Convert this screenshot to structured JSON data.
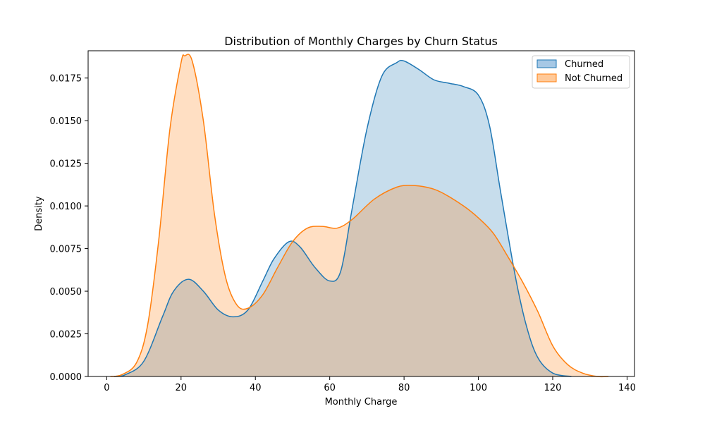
{
  "chart_data": {
    "type": "area",
    "title": "Distribution of Monthly Charges by Churn Status",
    "xlabel": "Monthly Charge",
    "ylabel": "Density",
    "xlim": [
      -5,
      142
    ],
    "ylim": [
      0,
      0.0191
    ],
    "xticks": [
      0,
      20,
      40,
      60,
      80,
      100,
      120,
      140
    ],
    "yticks": [
      0.0,
      0.0025,
      0.005,
      0.0075,
      0.01,
      0.0125,
      0.015,
      0.0175
    ],
    "ytick_labels": [
      "0.0000",
      "0.0025",
      "0.0050",
      "0.0075",
      "0.0100",
      "0.0125",
      "0.0150",
      "0.0175"
    ],
    "grid": false,
    "legend_position": "top-right",
    "series": [
      {
        "name": "Churned",
        "color": "#1f77b4",
        "fill": "#a6c8e5",
        "points": [
          [
            2,
            0.0
          ],
          [
            5,
            0.0001
          ],
          [
            10,
            0.0009
          ],
          [
            15,
            0.0035
          ],
          [
            18,
            0.005
          ],
          [
            22,
            0.0057
          ],
          [
            26,
            0.005
          ],
          [
            30,
            0.0039
          ],
          [
            34,
            0.0035
          ],
          [
            38,
            0.0039
          ],
          [
            42,
            0.0056
          ],
          [
            45,
            0.0069
          ],
          [
            49,
            0.0079
          ],
          [
            52,
            0.0076
          ],
          [
            56,
            0.0064
          ],
          [
            60,
            0.0056
          ],
          [
            63,
            0.0062
          ],
          [
            66,
            0.0098
          ],
          [
            70,
            0.0145
          ],
          [
            74,
            0.0176
          ],
          [
            78,
            0.0184
          ],
          [
            80,
            0.0185
          ],
          [
            84,
            0.018
          ],
          [
            88,
            0.0174
          ],
          [
            92,
            0.0172
          ],
          [
            96,
            0.017
          ],
          [
            100,
            0.0165
          ],
          [
            103,
            0.0147
          ],
          [
            106,
            0.0108
          ],
          [
            110,
            0.0058
          ],
          [
            113,
            0.0029
          ],
          [
            116,
            0.0011
          ],
          [
            120,
            0.0002
          ],
          [
            125,
            0.0
          ]
        ]
      },
      {
        "name": "Not Churned",
        "color": "#ff7f0e",
        "fill": "#ffc999",
        "points": [
          [
            1,
            0.0
          ],
          [
            4,
            0.0001
          ],
          [
            8,
            0.0008
          ],
          [
            11,
            0.003
          ],
          [
            14,
            0.008
          ],
          [
            17,
            0.0145
          ],
          [
            20,
            0.0184
          ],
          [
            21,
            0.0188
          ],
          [
            23,
            0.0185
          ],
          [
            26,
            0.015
          ],
          [
            29,
            0.0095
          ],
          [
            32,
            0.0058
          ],
          [
            35,
            0.0042
          ],
          [
            38,
            0.004
          ],
          [
            42,
            0.0048
          ],
          [
            46,
            0.0064
          ],
          [
            50,
            0.0079
          ],
          [
            54,
            0.0087
          ],
          [
            58,
            0.0088
          ],
          [
            62,
            0.0087
          ],
          [
            66,
            0.0092
          ],
          [
            72,
            0.0104
          ],
          [
            78,
            0.0111
          ],
          [
            82,
            0.0112
          ],
          [
            86,
            0.0111
          ],
          [
            90,
            0.0108
          ],
          [
            96,
            0.01
          ],
          [
            100,
            0.0093
          ],
          [
            104,
            0.0084
          ],
          [
            108,
            0.007
          ],
          [
            112,
            0.0055
          ],
          [
            116,
            0.0038
          ],
          [
            120,
            0.0018
          ],
          [
            124,
            0.0007
          ],
          [
            128,
            0.0002
          ],
          [
            132,
            0.0
          ],
          [
            135,
            0.0
          ]
        ]
      }
    ]
  }
}
